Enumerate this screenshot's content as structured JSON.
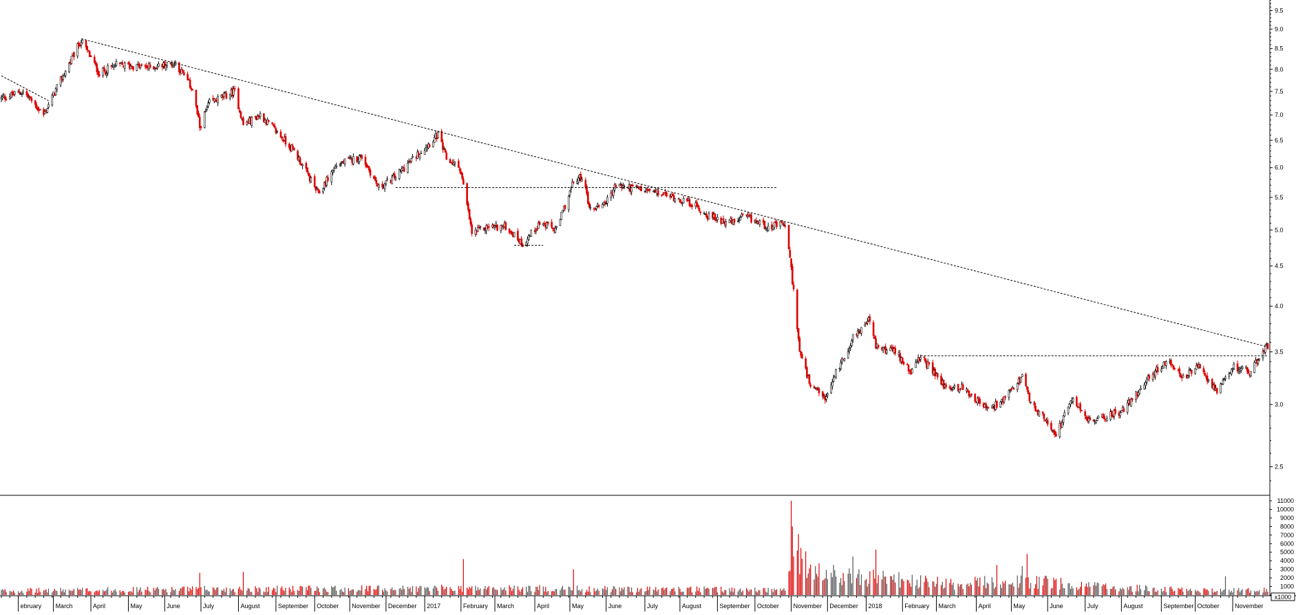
{
  "chart_data": {
    "type": "candlestick",
    "price_scale": "log",
    "ylim": [
      2.3,
      9.8
    ],
    "volume_ylim": [
      0,
      11000
    ],
    "volume_unit_label": "x1000",
    "grid": false,
    "colors": {
      "up": "#000000",
      "down": "#dd0000",
      "axis": "#000000",
      "trendline": "#000000"
    },
    "y_ticks": [
      {
        "value": 2.5,
        "label": "2.5"
      },
      {
        "value": 3.0,
        "label": "3.0"
      },
      {
        "value": 3.5,
        "label": "3.5"
      },
      {
        "value": 4.0,
        "label": "4.0"
      },
      {
        "value": 4.5,
        "label": "4.5"
      },
      {
        "value": 5.0,
        "label": "5.0"
      },
      {
        "value": 5.5,
        "label": "5.5"
      },
      {
        "value": 6.0,
        "label": "6.0"
      },
      {
        "value": 6.5,
        "label": "6.5"
      },
      {
        "value": 7.0,
        "label": "7.0"
      },
      {
        "value": 7.5,
        "label": "7.5"
      },
      {
        "value": 8.0,
        "label": "8.0"
      },
      {
        "value": 8.5,
        "label": "8.5"
      },
      {
        "value": 9.0,
        "label": "9.0"
      },
      {
        "value": 9.5,
        "label": "9.5"
      }
    ],
    "volume_ticks": [
      {
        "value": 0,
        "label": "0"
      },
      {
        "value": 1000,
        "label": "1000"
      },
      {
        "value": 2000,
        "label": "2000"
      },
      {
        "value": 3000,
        "label": "3000"
      },
      {
        "value": 4000,
        "label": "4000"
      },
      {
        "value": 5000,
        "label": "5000"
      },
      {
        "value": 6000,
        "label": "6000"
      },
      {
        "value": 7000,
        "label": "7000"
      },
      {
        "value": 8000,
        "label": "8000"
      },
      {
        "value": 9000,
        "label": "9000"
      },
      {
        "value": 10000,
        "label": "10000"
      },
      {
        "value": 11000,
        "label": "11000"
      }
    ],
    "x_labels": [
      {
        "date": "2016-02-01",
        "label": "ebruary"
      },
      {
        "date": "2016-03-01",
        "label": "March"
      },
      {
        "date": "2016-04-01",
        "label": "April"
      },
      {
        "date": "2016-05-02",
        "label": "May"
      },
      {
        "date": "2016-06-01",
        "label": "June"
      },
      {
        "date": "2016-07-01",
        "label": "July"
      },
      {
        "date": "2016-08-01",
        "label": "August"
      },
      {
        "date": "2016-09-01",
        "label": "September"
      },
      {
        "date": "2016-10-03",
        "label": "October"
      },
      {
        "date": "2016-11-01",
        "label": "November"
      },
      {
        "date": "2016-12-01",
        "label": "December"
      },
      {
        "date": "2017-01-02",
        "label": "2017"
      },
      {
        "date": "2017-02-01",
        "label": "February"
      },
      {
        "date": "2017-03-01",
        "label": "March"
      },
      {
        "date": "2017-04-03",
        "label": "April"
      },
      {
        "date": "2017-05-02",
        "label": "May"
      },
      {
        "date": "2017-06-01",
        "label": "June"
      },
      {
        "date": "2017-07-03",
        "label": "July"
      },
      {
        "date": "2017-08-01",
        "label": "August"
      },
      {
        "date": "2017-09-01",
        "label": "September"
      },
      {
        "date": "2017-10-02",
        "label": "October"
      },
      {
        "date": "2017-11-01",
        "label": "November"
      },
      {
        "date": "2017-12-01",
        "label": "December"
      },
      {
        "date": "2018-01-02",
        "label": "2018"
      },
      {
        "date": "2018-02-01",
        "label": "February"
      },
      {
        "date": "2018-03-01",
        "label": "March"
      },
      {
        "date": "2018-04-03",
        "label": "April"
      },
      {
        "date": "2018-05-02",
        "label": "May"
      },
      {
        "date": "2018-06-01",
        "label": "June"
      },
      {
        "date": "2018-07-02",
        "label": "July"
      },
      {
        "date": "2018-08-01",
        "label": "August"
      },
      {
        "date": "2018-09-03",
        "label": "September"
      },
      {
        "date": "2018-10-01",
        "label": "October"
      },
      {
        "date": "2018-11-01",
        "label": "November"
      }
    ],
    "price_path": [
      {
        "date": "2016-01-18",
        "close": 7.35
      },
      {
        "date": "2016-02-05",
        "close": 7.5
      },
      {
        "date": "2016-02-22",
        "close": 7.0
      },
      {
        "date": "2016-03-10",
        "close": 7.9
      },
      {
        "date": "2016-03-24",
        "close": 8.7
      },
      {
        "date": "2016-04-08",
        "close": 7.9
      },
      {
        "date": "2016-04-22",
        "close": 8.1
      },
      {
        "date": "2016-05-20",
        "close": 8.05
      },
      {
        "date": "2016-06-10",
        "close": 8.15
      },
      {
        "date": "2016-06-24",
        "close": 7.55
      },
      {
        "date": "2016-06-30",
        "close": 6.75
      },
      {
        "date": "2016-07-08",
        "close": 7.25
      },
      {
        "date": "2016-07-29",
        "close": 7.5
      },
      {
        "date": "2016-08-05",
        "close": 6.8
      },
      {
        "date": "2016-08-19",
        "close": 7.0
      },
      {
        "date": "2016-09-16",
        "close": 6.3
      },
      {
        "date": "2016-10-06",
        "close": 5.55
      },
      {
        "date": "2016-10-21",
        "close": 6.05
      },
      {
        "date": "2016-11-11",
        "close": 6.2
      },
      {
        "date": "2016-11-25",
        "close": 5.65
      },
      {
        "date": "2016-12-09",
        "close": 5.85
      },
      {
        "date": "2016-12-30",
        "close": 6.3
      },
      {
        "date": "2017-01-13",
        "close": 6.6
      },
      {
        "date": "2017-01-20",
        "close": 6.15
      },
      {
        "date": "2017-01-31",
        "close": 6.0
      },
      {
        "date": "2017-02-10",
        "close": 4.95
      },
      {
        "date": "2017-02-24",
        "close": 5.05
      },
      {
        "date": "2017-03-10",
        "close": 5.05
      },
      {
        "date": "2017-03-24",
        "close": 4.8
      },
      {
        "date": "2017-04-07",
        "close": 5.1
      },
      {
        "date": "2017-04-21",
        "close": 5.0
      },
      {
        "date": "2017-05-05",
        "close": 5.75
      },
      {
        "date": "2017-05-12",
        "close": 5.85
      },
      {
        "date": "2017-05-19",
        "close": 5.3
      },
      {
        "date": "2017-06-02",
        "close": 5.45
      },
      {
        "date": "2017-06-09",
        "close": 5.7
      },
      {
        "date": "2017-07-07",
        "close": 5.6
      },
      {
        "date": "2017-07-28",
        "close": 5.5
      },
      {
        "date": "2017-08-11",
        "close": 5.4
      },
      {
        "date": "2017-08-25",
        "close": 5.2
      },
      {
        "date": "2017-09-15",
        "close": 5.1
      },
      {
        "date": "2017-09-22",
        "close": 5.2
      },
      {
        "date": "2017-10-13",
        "close": 5.05
      },
      {
        "date": "2017-10-27",
        "close": 5.08
      },
      {
        "date": "2017-11-01",
        "close": 4.45
      },
      {
        "date": "2017-11-08",
        "close": 3.5
      },
      {
        "date": "2017-11-17",
        "close": 3.15
      },
      {
        "date": "2017-11-30",
        "close": 3.05
      },
      {
        "date": "2017-12-08",
        "close": 3.3
      },
      {
        "date": "2017-12-15",
        "close": 3.45
      },
      {
        "date": "2017-12-22",
        "close": 3.65
      },
      {
        "date": "2018-01-05",
        "close": 3.85
      },
      {
        "date": "2018-01-10",
        "close": 3.55
      },
      {
        "date": "2018-01-26",
        "close": 3.5
      },
      {
        "date": "2018-02-09",
        "close": 3.3
      },
      {
        "date": "2018-02-16",
        "close": 3.45
      },
      {
        "date": "2018-03-09",
        "close": 3.15
      },
      {
        "date": "2018-03-23",
        "close": 3.15
      },
      {
        "date": "2018-04-13",
        "close": 2.95
      },
      {
        "date": "2018-04-27",
        "close": 3.05
      },
      {
        "date": "2018-05-11",
        "close": 3.25
      },
      {
        "date": "2018-05-18",
        "close": 3.0
      },
      {
        "date": "2018-06-01",
        "close": 2.85
      },
      {
        "date": "2018-06-08",
        "close": 2.75
      },
      {
        "date": "2018-06-22",
        "close": 3.05
      },
      {
        "date": "2018-07-06",
        "close": 2.85
      },
      {
        "date": "2018-07-20",
        "close": 2.9
      },
      {
        "date": "2018-08-03",
        "close": 2.95
      },
      {
        "date": "2018-08-24",
        "close": 3.25
      },
      {
        "date": "2018-09-07",
        "close": 3.4
      },
      {
        "date": "2018-09-21",
        "close": 3.25
      },
      {
        "date": "2018-10-05",
        "close": 3.35
      },
      {
        "date": "2018-10-19",
        "close": 3.1
      },
      {
        "date": "2018-11-02",
        "close": 3.35
      },
      {
        "date": "2018-11-16",
        "close": 3.3
      },
      {
        "date": "2018-11-28",
        "close": 3.55
      }
    ],
    "volume_profile": [
      {
        "date": "2016-01-18",
        "volume": 500
      },
      {
        "date": "2016-06-30",
        "volume": 700
      },
      {
        "date": "2017-01-31",
        "volume": 800
      },
      {
        "date": "2017-10-27",
        "volume": 600
      },
      {
        "date": "2017-11-01",
        "volume": 6000
      },
      {
        "date": "2017-11-17",
        "volume": 2500
      },
      {
        "date": "2018-01-05",
        "volume": 2000
      },
      {
        "date": "2018-03-09",
        "volume": 1300
      },
      {
        "date": "2018-05-18",
        "volume": 1600
      },
      {
        "date": "2018-07-20",
        "volume": 900
      },
      {
        "date": "2018-10-19",
        "volume": 500
      },
      {
        "date": "2018-11-28",
        "volume": 600
      }
    ],
    "volume_spikes": [
      {
        "date": "2016-06-30",
        "volume": 2600
      },
      {
        "date": "2016-08-05",
        "volume": 2700
      },
      {
        "date": "2017-02-03",
        "volume": 4200
      },
      {
        "date": "2017-05-05",
        "volume": 3000
      },
      {
        "date": "2017-11-01",
        "volume": 11000
      },
      {
        "date": "2017-11-02",
        "volume": 8000
      },
      {
        "date": "2017-11-06",
        "volume": 5200
      },
      {
        "date": "2017-12-22",
        "volume": 4500
      },
      {
        "date": "2018-01-10",
        "volume": 5300
      },
      {
        "date": "2018-04-20",
        "volume": 3500
      },
      {
        "date": "2018-05-11",
        "volume": 3400
      },
      {
        "date": "2018-05-15",
        "volume": 4800
      },
      {
        "date": "2018-10-26",
        "volume": 2200
      }
    ],
    "trend_lines": [
      {
        "from": {
          "date": "2016-03-24",
          "price": 8.75
        },
        "to": {
          "date": "2018-11-30",
          "price": 3.55
        }
      },
      {
        "from": {
          "date": "2016-01-18",
          "price": 7.85
        },
        "to": {
          "date": "2016-02-26",
          "price": 7.3
        }
      }
    ],
    "horizontal_lines": [
      {
        "price": 5.66,
        "from": "2016-12-09",
        "to": "2017-10-20"
      },
      {
        "price": 4.78,
        "from": "2017-03-17",
        "to": "2017-04-10"
      },
      {
        "price": 3.46,
        "from": "2018-02-16",
        "to": "2018-11-30"
      }
    ]
  }
}
